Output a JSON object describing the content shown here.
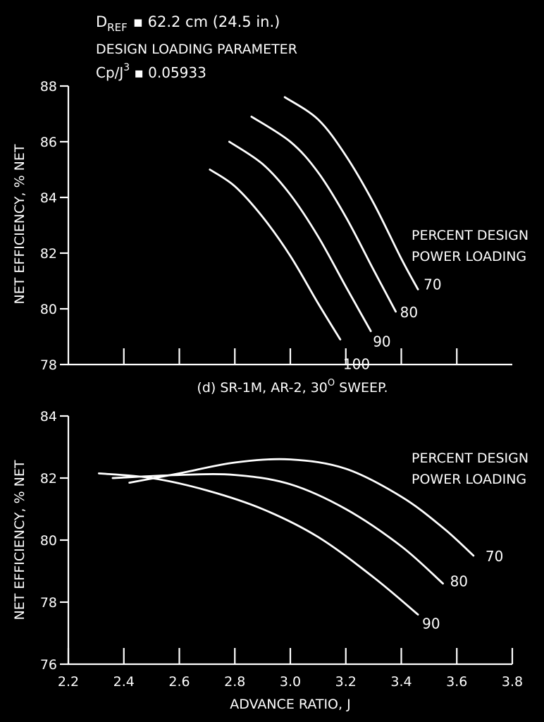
{
  "header": {
    "line1_prefix": "D",
    "line1_sub": "REF",
    "line1_rest": "▪ 62.2 cm (24.5 in.)",
    "line2": "DESIGN LOADING PARAMETER",
    "line3_prefix": "Cp/J",
    "line3_sup": "3",
    "line3_rest": "▪ 0.05933"
  },
  "chart_data": [
    {
      "type": "line",
      "ylabel": "NET EFFICIENCY, % NET",
      "xlabel": "",
      "caption": {
        "prefix": "(d) SR-1M, AR-2, 30",
        "sup": "O",
        "suffix": " SWEEP."
      },
      "legend_title": [
        "PERCENT DESIGN",
        "POWER LOADING"
      ],
      "xlim": [
        2.2,
        3.8
      ],
      "ylim": [
        78,
        88
      ],
      "yticks": [
        78,
        80,
        82,
        84,
        86,
        88
      ],
      "xticks": [
        2.4,
        2.6,
        2.8,
        3.0,
        3.2,
        3.4,
        3.6
      ],
      "show_xtick_labels": false,
      "series": [
        {
          "name": "70",
          "x": [
            2.98,
            3.1,
            3.2,
            3.3,
            3.4,
            3.46
          ],
          "y": [
            87.6,
            86.8,
            85.5,
            83.8,
            81.8,
            80.7
          ]
        },
        {
          "name": "80",
          "x": [
            2.86,
            3.0,
            3.1,
            3.2,
            3.3,
            3.38
          ],
          "y": [
            86.9,
            86.0,
            84.9,
            83.3,
            81.4,
            79.9
          ]
        },
        {
          "name": "90",
          "x": [
            2.78,
            2.9,
            3.0,
            3.1,
            3.2,
            3.29
          ],
          "y": [
            86.0,
            85.2,
            84.1,
            82.6,
            80.8,
            79.2
          ]
        },
        {
          "name": "100",
          "x": [
            2.71,
            2.8,
            2.9,
            3.0,
            3.1,
            3.18
          ],
          "y": [
            85.0,
            84.4,
            83.3,
            81.9,
            80.2,
            78.9
          ]
        }
      ]
    },
    {
      "type": "line",
      "ylabel": "NET EFFICIENCY, % NET",
      "xlabel": "ADVANCE RATIO, J",
      "legend_title": [
        "PERCENT DESIGN",
        "POWER LOADING"
      ],
      "xlim": [
        2.2,
        3.8
      ],
      "ylim": [
        76,
        84
      ],
      "yticks": [
        76,
        78,
        80,
        82,
        84
      ],
      "xticks": [
        2.2,
        2.4,
        2.6,
        2.8,
        3.0,
        3.2,
        3.4,
        3.6,
        3.8
      ],
      "xtick_labels": [
        "2.2",
        "2.4",
        "2.6",
        "2.8",
        "3.0",
        "3.2",
        "3.4",
        "3.6",
        "3.8"
      ],
      "series": [
        {
          "name": "70",
          "x": [
            2.42,
            2.6,
            2.8,
            3.0,
            3.2,
            3.4,
            3.55,
            3.66
          ],
          "y": [
            81.85,
            82.15,
            82.5,
            82.6,
            82.3,
            81.4,
            80.4,
            79.5
          ]
        },
        {
          "name": "80",
          "x": [
            2.36,
            2.6,
            2.8,
            3.0,
            3.2,
            3.4,
            3.55
          ],
          "y": [
            82.0,
            82.1,
            82.1,
            81.8,
            81.0,
            79.8,
            78.6
          ]
        },
        {
          "name": "90",
          "x": [
            2.31,
            2.5,
            2.7,
            2.9,
            3.1,
            3.3,
            3.46
          ],
          "y": [
            82.15,
            82.0,
            81.6,
            81.0,
            80.1,
            78.8,
            77.6
          ]
        }
      ]
    }
  ]
}
